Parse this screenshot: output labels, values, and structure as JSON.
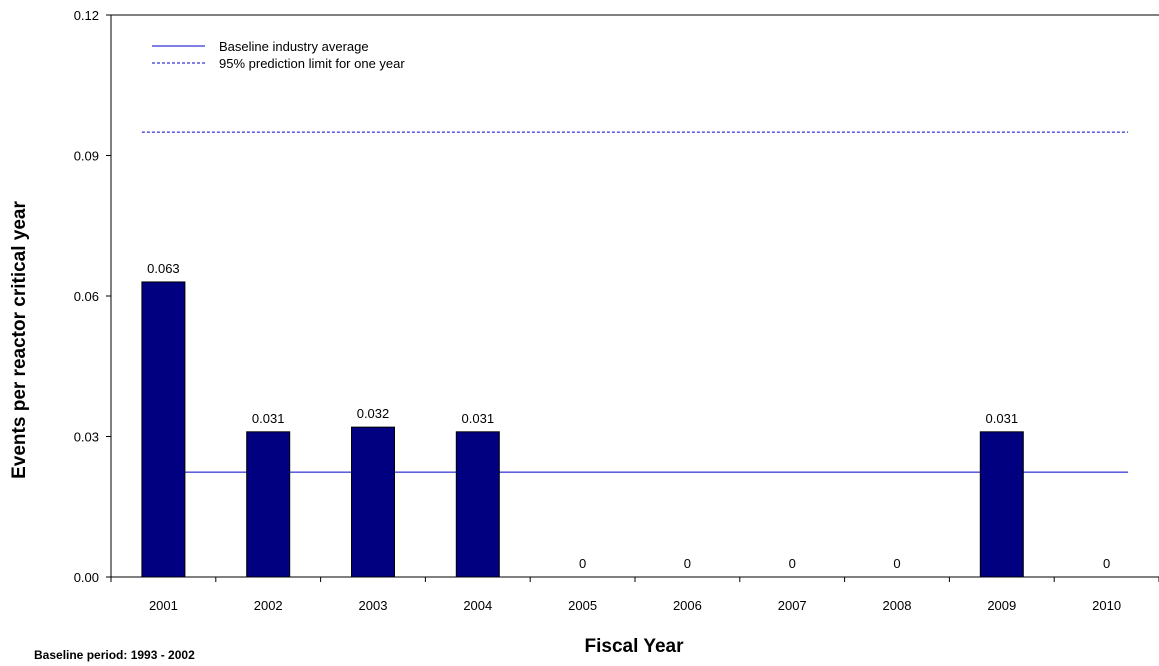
{
  "chart_data": {
    "type": "bar",
    "categories": [
      "2001",
      "2002",
      "2003",
      "2004",
      "2005",
      "2006",
      "2007",
      "2008",
      "2009",
      "2010"
    ],
    "values": [
      0.063,
      0.031,
      0.032,
      0.031,
      0,
      0,
      0,
      0,
      0.031,
      0
    ],
    "data_labels": [
      "0.063",
      "0.031",
      "0.032",
      "0.031",
      "0",
      "0",
      "0",
      "0",
      "0.031",
      "0"
    ],
    "xlabel": "Fiscal Year",
    "ylabel": "Events per reactor critical year",
    "ylim": [
      0,
      0.12
    ],
    "yticks": [
      0,
      0.03,
      0.06,
      0.09,
      0.12
    ],
    "ytick_labels": [
      "0.00",
      "0.03",
      "0.06",
      "0.09",
      "0.12"
    ],
    "grid": false,
    "legend_position": "top-left",
    "reference_lines": [
      {
        "name": "Baseline industry average",
        "value": 0.0224,
        "style": "solid",
        "color": "#0000cc"
      },
      {
        "name": "95%  prediction limit for one year",
        "value": 0.095,
        "style": "dashed",
        "color": "#0000cc"
      }
    ],
    "bar_color": "#000080",
    "annotation": "Baseline period:  1993 - 2002"
  }
}
